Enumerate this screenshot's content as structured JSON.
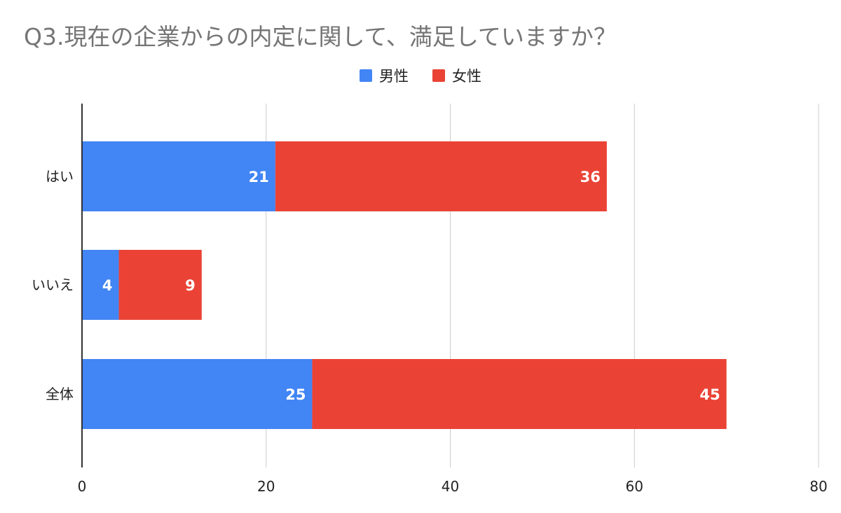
{
  "chart_data": {
    "type": "bar",
    "orientation": "horizontal",
    "stacked": true,
    "title": "Q3.現在の企業からの内定に関して、満足していますか？",
    "categories": [
      "はい",
      "いいえ",
      "全体"
    ],
    "series": [
      {
        "name": "男性",
        "values": [
          21,
          4,
          25
        ],
        "color": "#4285f4"
      },
      {
        "name": "女性",
        "values": [
          36,
          9,
          45
        ],
        "color": "#ea4335"
      }
    ],
    "xlim": [
      0,
      80
    ],
    "xticks": [
      0,
      20,
      40,
      60,
      80
    ],
    "grid": true,
    "legend_position": "top",
    "data_labels": true
  }
}
